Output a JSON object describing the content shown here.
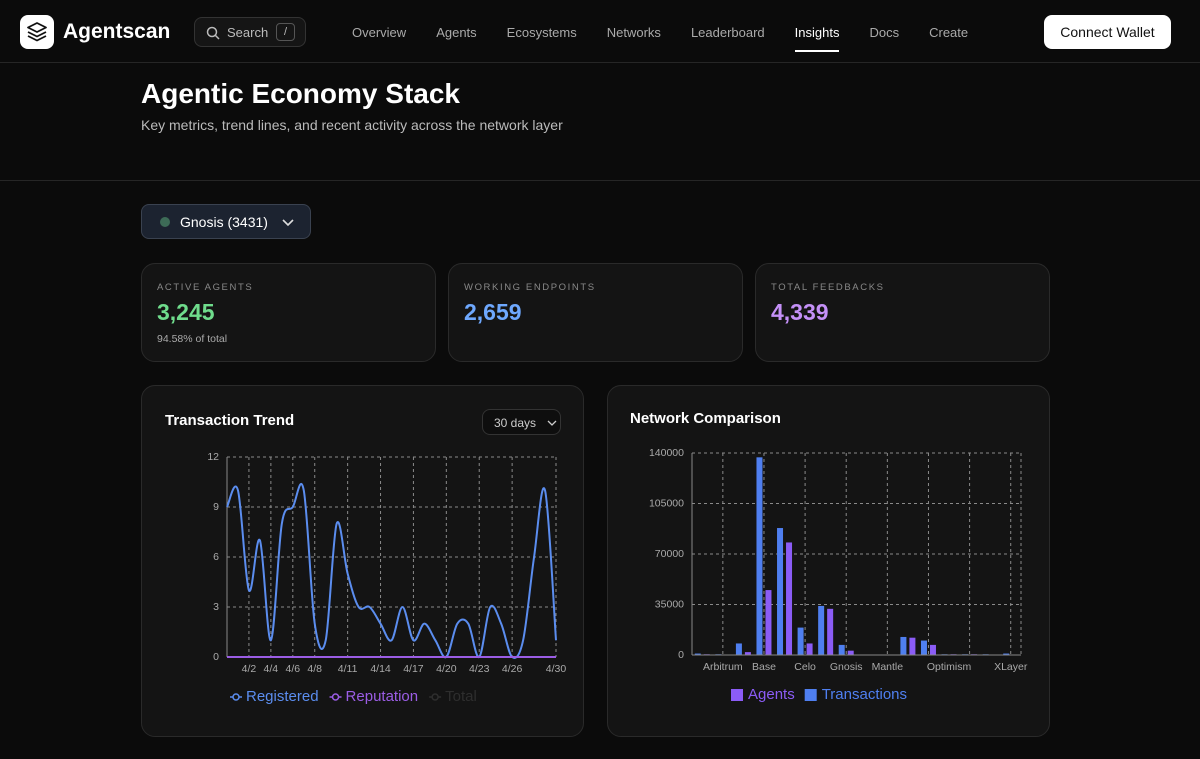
{
  "nav": {
    "brand": "Agentscan",
    "search": "Search",
    "search_key": "/",
    "links": [
      "Overview",
      "Agents",
      "Ecosystems",
      "Networks",
      "Leaderboard",
      "Insights",
      "Docs",
      "Create"
    ],
    "active": 5,
    "connect": "Connect Wallet"
  },
  "header": {
    "title": "Agentic Economy Stack",
    "subtitle": "Key metrics, trend lines, and recent activity across the network layer"
  },
  "selector": "Gnosis (3431)",
  "stats": [
    {
      "label": "ACTIVE AGENTS",
      "value": "3,245",
      "note": "94.58% of total",
      "color": "#6fdc8c"
    },
    {
      "label": "WORKING ENDPOINTS",
      "value": "2,659",
      "color": "#6ea8fe"
    },
    {
      "label": "TOTAL FEEDBACKS",
      "value": "4,339",
      "color": "#c490f7"
    }
  ],
  "chart_data": [
    {
      "type": "line",
      "title": "Transaction Trend",
      "range": "30 days",
      "categories": [
        null,
        null,
        "4/2",
        null,
        "4/4",
        null,
        "4/6",
        null,
        "4/8",
        null,
        null,
        "4/11",
        null,
        null,
        "4/14",
        null,
        null,
        "4/17",
        null,
        null,
        "4/20",
        null,
        null,
        "4/23",
        null,
        null,
        "4/26",
        null,
        null,
        null,
        "4/30"
      ],
      "series": [
        {
          "name": "Registered",
          "color": "#5b8def",
          "values": [
            9,
            10,
            4,
            7,
            1,
            8,
            9,
            10,
            2,
            1,
            8,
            5,
            3,
            3,
            2,
            1,
            3,
            1,
            2,
            1,
            0,
            2,
            2,
            0,
            3,
            2,
            0,
            1,
            6,
            10,
            1
          ]
        },
        {
          "name": "Reputation",
          "color": "#9b5de5",
          "values": [
            0,
            0,
            0,
            0,
            0,
            0,
            0,
            0,
            0,
            0,
            0,
            0,
            0,
            0,
            0,
            0,
            0,
            0,
            0,
            0,
            0,
            0,
            0,
            0,
            0,
            0,
            0,
            0,
            0,
            0,
            0
          ]
        },
        {
          "name": "Total",
          "color": "#2e2e2e"
        }
      ],
      "ylim": [
        0,
        12
      ],
      "yticks": [
        0,
        3,
        6,
        9,
        12
      ],
      "grid": true
    },
    {
      "type": "bar",
      "title": "Network Comparison",
      "categories": [
        null,
        "Arbitrum",
        null,
        "Base",
        null,
        "Celo",
        null,
        "Gnosis",
        null,
        "Mantle",
        null,
        null,
        "Optimism",
        null,
        null,
        "XLayer"
      ],
      "series": [
        {
          "name": "Agents",
          "color": "#8b5cf6",
          "values": [
            500,
            0,
            2000,
            45000,
            78000,
            8000,
            32000,
            3000,
            0,
            0,
            12000,
            7000,
            500,
            500,
            0,
            0
          ]
        },
        {
          "name": "Transactions",
          "color": "#4f7ff0",
          "values": [
            1000,
            500,
            8000,
            137000,
            88000,
            19000,
            34000,
            7000,
            0,
            0,
            12500,
            10000,
            500,
            500,
            500,
            1000
          ]
        }
      ],
      "ylim": [
        0,
        140000
      ],
      "yticks": [
        0,
        35000,
        70000,
        105000,
        140000
      ],
      "grid": true
    }
  ]
}
